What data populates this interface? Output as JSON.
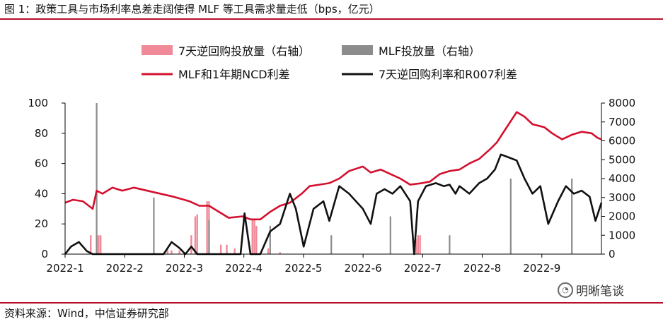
{
  "title": "图 1：政策工具与市场利率息差走阔使得 MLF 等工具需求量走低（bps，亿元）",
  "source": "资料来源：Wind，中信证券研究部",
  "watermark": "明晰笔谈",
  "colors": {
    "accent": "#b8102a",
    "mlf_ncd_spread": "#d3102e",
    "rr_r007_spread": "#111111",
    "rr_volume": "#f08a99",
    "mlf_volume": "#8c8c8c"
  },
  "chart_data": {
    "type": "bar+line",
    "x_ticks": [
      "2022-1",
      "2022-2",
      "2022-3",
      "2022-4",
      "2022-5",
      "2022-6",
      "2022-7",
      "2022-8",
      "2022-9"
    ],
    "x_range": [
      "2022-01-01",
      "2022-09-30"
    ],
    "y_left": {
      "ticks": [
        "100",
        "80",
        "60",
        "40",
        "20",
        "0"
      ],
      "min": 0,
      "max": 100
    },
    "y_right": {
      "ticks": [
        "8000",
        "7000",
        "6000",
        "5000",
        "4000",
        "3000",
        "2000",
        "1000",
        "0"
      ],
      "min": 0,
      "max": 8000
    },
    "legend": [
      {
        "name": "7天逆回购投放量（右轴）",
        "kind": "bar",
        "series": "rr_volume"
      },
      {
        "name": "MLF投放量（右轴）",
        "kind": "bar",
        "series": "mlf_volume"
      },
      {
        "name": "MLF和1年期NCD利差",
        "kind": "line",
        "series": "mlf_ncd_spread"
      },
      {
        "name": "7天逆回购利率和R007利差",
        "kind": "line",
        "series": "rr_r007_spread"
      }
    ],
    "series": {
      "mlf_ncd_spread": {
        "axis": "left",
        "points": [
          [
            "2022-01-01",
            34
          ],
          [
            "2022-01-05",
            36
          ],
          [
            "2022-01-10",
            35
          ],
          [
            "2022-01-15",
            30
          ],
          [
            "2022-01-17",
            42
          ],
          [
            "2022-01-20",
            40
          ],
          [
            "2022-01-25",
            44
          ],
          [
            "2022-01-30",
            42
          ],
          [
            "2022-02-05",
            44
          ],
          [
            "2022-02-15",
            41
          ],
          [
            "2022-02-25",
            38
          ],
          [
            "2022-03-05",
            35
          ],
          [
            "2022-03-10",
            32
          ],
          [
            "2022-03-15",
            32
          ],
          [
            "2022-03-20",
            28
          ],
          [
            "2022-03-25",
            24
          ],
          [
            "2022-04-01",
            25
          ],
          [
            "2022-04-05",
            23
          ],
          [
            "2022-04-10",
            23
          ],
          [
            "2022-04-15",
            28
          ],
          [
            "2022-04-20",
            32
          ],
          [
            "2022-04-25",
            34
          ],
          [
            "2022-05-01",
            40
          ],
          [
            "2022-05-05",
            45
          ],
          [
            "2022-05-10",
            46
          ],
          [
            "2022-05-15",
            47
          ],
          [
            "2022-05-20",
            50
          ],
          [
            "2022-05-25",
            55
          ],
          [
            "2022-06-01",
            58
          ],
          [
            "2022-06-05",
            54
          ],
          [
            "2022-06-10",
            56
          ],
          [
            "2022-06-15",
            53
          ],
          [
            "2022-06-20",
            50
          ],
          [
            "2022-06-25",
            46
          ],
          [
            "2022-07-01",
            47
          ],
          [
            "2022-07-05",
            48
          ],
          [
            "2022-07-10",
            53
          ],
          [
            "2022-07-15",
            55
          ],
          [
            "2022-07-20",
            56
          ],
          [
            "2022-07-25",
            60
          ],
          [
            "2022-07-30",
            63
          ],
          [
            "2022-08-05",
            70
          ],
          [
            "2022-08-08",
            74
          ],
          [
            "2022-08-12",
            82
          ],
          [
            "2022-08-15",
            88
          ],
          [
            "2022-08-18",
            94
          ],
          [
            "2022-08-22",
            91
          ],
          [
            "2022-08-26",
            86
          ],
          [
            "2022-09-01",
            84
          ],
          [
            "2022-09-05",
            80
          ],
          [
            "2022-09-10",
            76
          ],
          [
            "2022-09-15",
            79
          ],
          [
            "2022-09-20",
            81
          ],
          [
            "2022-09-25",
            80
          ],
          [
            "2022-09-28",
            77
          ],
          [
            "2022-09-30",
            76
          ]
        ]
      },
      "rr_r007_spread": {
        "axis": "left",
        "points": [
          [
            "2022-01-01",
            0
          ],
          [
            "2022-01-04",
            5
          ],
          [
            "2022-01-08",
            8
          ],
          [
            "2022-01-12",
            2
          ],
          [
            "2022-01-15",
            0
          ],
          [
            "2022-02-20",
            0
          ],
          [
            "2022-02-24",
            8
          ],
          [
            "2022-02-28",
            4
          ],
          [
            "2022-03-03",
            0
          ],
          [
            "2022-03-06",
            5
          ],
          [
            "2022-03-09",
            0
          ],
          [
            "2022-03-20",
            0
          ],
          [
            "2022-03-31",
            0
          ],
          [
            "2022-04-02",
            27
          ],
          [
            "2022-04-05",
            0
          ],
          [
            "2022-04-10",
            0
          ],
          [
            "2022-04-15",
            15
          ],
          [
            "2022-04-20",
            20
          ],
          [
            "2022-04-25",
            40
          ],
          [
            "2022-04-28",
            30
          ],
          [
            "2022-05-02",
            5
          ],
          [
            "2022-05-07",
            30
          ],
          [
            "2022-05-12",
            35
          ],
          [
            "2022-05-15",
            22
          ],
          [
            "2022-05-20",
            45
          ],
          [
            "2022-05-25",
            40
          ],
          [
            "2022-06-01",
            30
          ],
          [
            "2022-06-05",
            20
          ],
          [
            "2022-06-08",
            40
          ],
          [
            "2022-06-12",
            43
          ],
          [
            "2022-06-16",
            40
          ],
          [
            "2022-06-20",
            45
          ],
          [
            "2022-06-25",
            35
          ],
          [
            "2022-06-27",
            0
          ],
          [
            "2022-06-29",
            35
          ],
          [
            "2022-07-03",
            45
          ],
          [
            "2022-07-08",
            47
          ],
          [
            "2022-07-12",
            45
          ],
          [
            "2022-07-15",
            46
          ],
          [
            "2022-07-18",
            40
          ],
          [
            "2022-07-20",
            45
          ],
          [
            "2022-07-25",
            40
          ],
          [
            "2022-07-30",
            47
          ],
          [
            "2022-08-03",
            50
          ],
          [
            "2022-08-07",
            56
          ],
          [
            "2022-08-10",
            66
          ],
          [
            "2022-08-14",
            64
          ],
          [
            "2022-08-18",
            62
          ],
          [
            "2022-08-22",
            50
          ],
          [
            "2022-08-26",
            40
          ],
          [
            "2022-08-30",
            45
          ],
          [
            "2022-09-03",
            20
          ],
          [
            "2022-09-08",
            35
          ],
          [
            "2022-09-12",
            45
          ],
          [
            "2022-09-16",
            40
          ],
          [
            "2022-09-20",
            42
          ],
          [
            "2022-09-24",
            38
          ],
          [
            "2022-09-27",
            22
          ],
          [
            "2022-09-30",
            34
          ]
        ]
      },
      "rr_volume": {
        "axis": "right",
        "bars": [
          [
            "2022-01-14",
            1000
          ],
          [
            "2022-01-17",
            1000
          ],
          [
            "2022-01-18",
            1000
          ],
          [
            "2022-01-19",
            1000
          ],
          [
            "2022-02-22",
            200
          ],
          [
            "2022-02-24",
            200
          ],
          [
            "2022-02-28",
            200
          ],
          [
            "2022-03-06",
            1000
          ],
          [
            "2022-03-08",
            2000
          ],
          [
            "2022-03-09",
            2100
          ],
          [
            "2022-03-14",
            2800
          ],
          [
            "2022-03-15",
            2800
          ],
          [
            "2022-03-21",
            500
          ],
          [
            "2022-03-24",
            500
          ],
          [
            "2022-03-28",
            300
          ],
          [
            "2022-04-06",
            1800
          ],
          [
            "2022-04-07",
            1800
          ],
          [
            "2022-04-08",
            1500
          ],
          [
            "2022-04-14",
            300
          ],
          [
            "2022-04-20",
            100
          ],
          [
            "2022-06-28",
            800
          ],
          [
            "2022-06-29",
            1000
          ],
          [
            "2022-06-30",
            1000
          ]
        ]
      },
      "mlf_volume": {
        "axis": "right",
        "bars": [
          [
            "2022-01-17",
            8000
          ],
          [
            "2022-02-15",
            3000
          ],
          [
            "2022-03-15",
            1800
          ],
          [
            "2022-04-15",
            1500
          ],
          [
            "2022-05-16",
            1000
          ],
          [
            "2022-06-15",
            2000
          ],
          [
            "2022-07-15",
            1000
          ],
          [
            "2022-08-15",
            4000
          ],
          [
            "2022-09-15",
            4000
          ]
        ]
      }
    }
  }
}
